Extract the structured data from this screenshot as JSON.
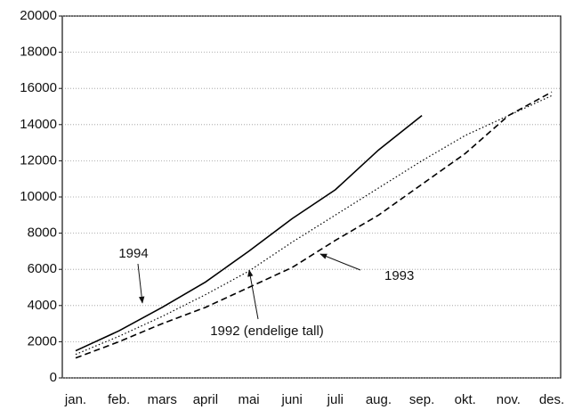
{
  "chart_data": {
    "type": "line",
    "categories": [
      "jan.",
      "feb.",
      "mars",
      "april",
      "mai",
      "juni",
      "juli",
      "aug.",
      "sep.",
      "okt.",
      "nov.",
      "des."
    ],
    "series": [
      {
        "name": "1994",
        "color": "#000000",
        "style": "solid",
        "values": [
          1500,
          2600,
          3900,
          5300,
          7000,
          8800,
          10400,
          12600,
          14500,
          null,
          null,
          null
        ]
      },
      {
        "name": "1993",
        "color": "#000000",
        "style": "dashed",
        "values": [
          1100,
          2000,
          3000,
          3900,
          5000,
          6100,
          7600,
          9000,
          10700,
          12400,
          14500,
          15800
        ]
      },
      {
        "name": "1992 (endelige tall)",
        "color": "#000000",
        "style": "dotted",
        "values": [
          1300,
          2300,
          3400,
          4600,
          5900,
          7500,
          9000,
          10500,
          12000,
          13400,
          14500,
          15600
        ]
      }
    ],
    "ylim": [
      0,
      20000
    ],
    "yticks": [
      0,
      2000,
      4000,
      6000,
      8000,
      10000,
      12000,
      14000,
      16000,
      18000,
      20000
    ],
    "grid": true
  }
}
